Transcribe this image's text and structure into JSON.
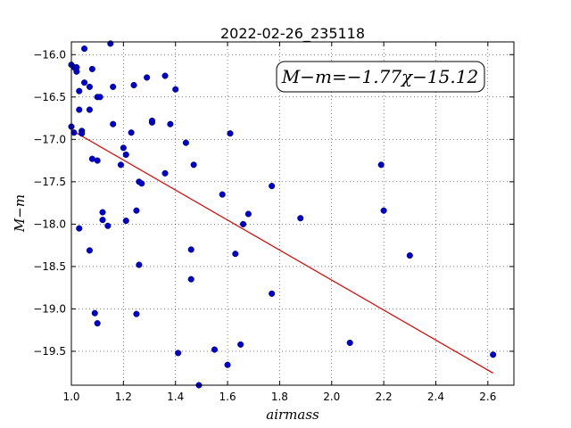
{
  "chart_data": {
    "type": "scatter",
    "title": "2022-02-26_235118",
    "xlabel": "airmass",
    "ylabel": "M−m",
    "xlim": [
      1.0,
      2.7
    ],
    "ylim": [
      -19.9,
      -15.85
    ],
    "y_inverted": true,
    "xticks": [
      1.0,
      1.2,
      1.4,
      1.6,
      1.8,
      2.0,
      2.2,
      2.4,
      2.6
    ],
    "yticks": [
      -16.0,
      -16.5,
      -17.0,
      -17.5,
      -18.0,
      -18.5,
      -19.0,
      -19.5
    ],
    "xtick_labels": [
      "1.0",
      "1.2",
      "1.4",
      "1.6",
      "1.8",
      "2.0",
      "2.2",
      "2.4",
      "2.6"
    ],
    "ytick_labels": [
      "−16.0",
      "−16.5",
      "−17.0",
      "−17.5",
      "−18.0",
      "−18.5",
      "−19.0",
      "−19.5"
    ],
    "grid": true,
    "annotation": "M−m=−1.77χ−15.12",
    "fit": {
      "slope": -1.77,
      "intercept": -15.12,
      "x_range": [
        1.0,
        2.62
      ]
    },
    "point_color": "#0000cc",
    "line_color": "#dd0000",
    "points": [
      [
        1.0,
        -16.12
      ],
      [
        1.01,
        -16.15
      ],
      [
        1.02,
        -16.15
      ],
      [
        1.02,
        -16.2
      ],
      [
        1.05,
        -15.93
      ],
      [
        1.05,
        -16.33
      ],
      [
        1.07,
        -16.38
      ],
      [
        1.03,
        -16.43
      ],
      [
        1.08,
        -16.17
      ],
      [
        1.1,
        -16.5
      ],
      [
        1.11,
        -16.5
      ],
      [
        1.07,
        -16.65
      ],
      [
        1.03,
        -16.65
      ],
      [
        1.15,
        -15.87
      ],
      [
        1.16,
        -16.38
      ],
      [
        1.24,
        -16.36
      ],
      [
        1.29,
        -16.27
      ],
      [
        1.36,
        -16.25
      ],
      [
        1.4,
        -16.41
      ],
      [
        1.0,
        -16.85
      ],
      [
        1.01,
        -16.92
      ],
      [
        1.04,
        -16.9
      ],
      [
        1.04,
        -16.93
      ],
      [
        1.16,
        -16.82
      ],
      [
        1.23,
        -16.92
      ],
      [
        1.31,
        -16.8
      ],
      [
        1.31,
        -16.78
      ],
      [
        1.38,
        -16.82
      ],
      [
        1.61,
        -16.93
      ],
      [
        1.44,
        -17.04
      ],
      [
        1.2,
        -17.1
      ],
      [
        1.21,
        -17.18
      ],
      [
        1.08,
        -17.23
      ],
      [
        1.1,
        -17.25
      ],
      [
        1.19,
        -17.3
      ],
      [
        1.47,
        -17.3
      ],
      [
        1.36,
        -17.4
      ],
      [
        1.26,
        -17.5
      ],
      [
        1.27,
        -17.52
      ],
      [
        1.77,
        -17.55
      ],
      [
        1.58,
        -17.65
      ],
      [
        1.12,
        -17.86
      ],
      [
        1.25,
        -17.84
      ],
      [
        1.68,
        -17.88
      ],
      [
        1.12,
        -17.95
      ],
      [
        1.21,
        -17.96
      ],
      [
        1.66,
        -18.0
      ],
      [
        1.14,
        -18.02
      ],
      [
        1.03,
        -18.05
      ],
      [
        1.88,
        -17.93
      ],
      [
        2.19,
        -17.3
      ],
      [
        2.2,
        -17.84
      ],
      [
        1.07,
        -18.31
      ],
      [
        1.46,
        -18.3
      ],
      [
        1.63,
        -18.35
      ],
      [
        2.3,
        -18.37
      ],
      [
        1.26,
        -18.48
      ],
      [
        1.46,
        -18.65
      ],
      [
        1.77,
        -18.82
      ],
      [
        1.09,
        -19.05
      ],
      [
        1.25,
        -19.06
      ],
      [
        1.1,
        -19.17
      ],
      [
        2.07,
        -19.4
      ],
      [
        1.65,
        -19.42
      ],
      [
        1.55,
        -19.48
      ],
      [
        1.41,
        -19.52
      ],
      [
        2.62,
        -19.54
      ],
      [
        1.6,
        -19.66
      ],
      [
        1.49,
        -19.9
      ]
    ]
  }
}
